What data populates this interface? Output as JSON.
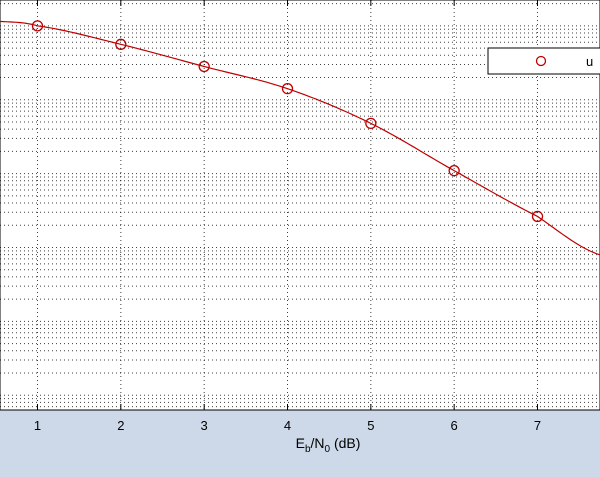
{
  "chart_data": {
    "type": "line",
    "title": "",
    "xlabel": "E_b/N_0 (dB)",
    "xlabel_parts": {
      "e": "E",
      "b": "b",
      "slash_n": "/N",
      "zero": "0",
      "unit": " (dB)"
    },
    "ylabel": "",
    "y_scale": "log",
    "grid": true,
    "legend_position": "top-right",
    "legend_entries": [
      "u"
    ],
    "x_ticks": [
      "1",
      "2",
      "3",
      "4",
      "5",
      "6",
      "7"
    ],
    "x": [
      0.5,
      1,
      2,
      3,
      4,
      5,
      6,
      7,
      7.8
    ],
    "xlim": [
      0.55,
      7.75
    ],
    "ylim_log10": [
      -5.2,
      0.35
    ],
    "series": [
      {
        "name": "",
        "style": "o-",
        "points_x": [
          1,
          2,
          3,
          4,
          5,
          6,
          7
        ],
        "points_log10_y": [
          0.0,
          -0.25,
          -0.55,
          -0.85,
          -1.32,
          -1.96,
          -2.58
        ],
        "curve_x": [
          0.55,
          1,
          2,
          3,
          4,
          5,
          6,
          7,
          7.75
        ],
        "curve_log10_y": [
          0.06,
          0.0,
          -0.25,
          -0.55,
          -0.85,
          -1.32,
          -1.96,
          -2.58,
          -3.1
        ]
      }
    ]
  },
  "colors": {
    "series": "#c00000",
    "grid": "#000000",
    "axes_bg": "#ffffff",
    "window_bg": "#cdd9e8"
  }
}
